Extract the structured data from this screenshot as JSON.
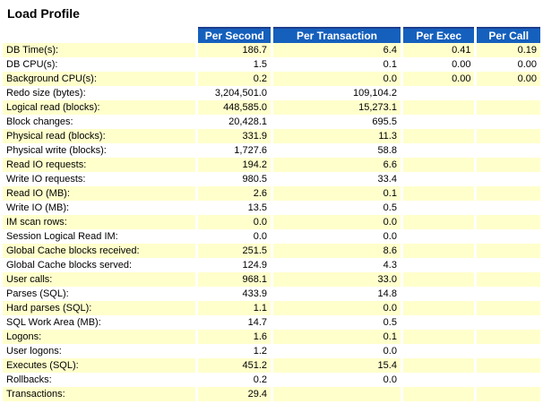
{
  "title": "Load Profile",
  "table": {
    "columns": [
      "",
      "Per Second",
      "Per Transaction",
      "Per Exec",
      "Per Call"
    ],
    "rows": [
      {
        "cells": [
          "DB Time(s):",
          "186.7",
          "6.4",
          "0.41",
          "0.19"
        ]
      },
      {
        "cells": [
          "DB CPU(s):",
          "1.5",
          "0.1",
          "0.00",
          "0.00"
        ]
      },
      {
        "cells": [
          "Background CPU(s):",
          "0.2",
          "0.0",
          "0.00",
          "0.00"
        ]
      },
      {
        "cells": [
          "Redo size (bytes):",
          "3,204,501.0",
          "109,104.2",
          "",
          ""
        ]
      },
      {
        "cells": [
          "Logical read (blocks):",
          "448,585.0",
          "15,273.1",
          "",
          ""
        ]
      },
      {
        "cells": [
          "Block changes:",
          "20,428.1",
          "695.5",
          "",
          ""
        ]
      },
      {
        "cells": [
          "Physical read (blocks):",
          "331.9",
          "11.3",
          "",
          ""
        ]
      },
      {
        "cells": [
          "Physical write (blocks):",
          "1,727.6",
          "58.8",
          "",
          ""
        ]
      },
      {
        "cells": [
          "Read IO requests:",
          "194.2",
          "6.6",
          "",
          ""
        ]
      },
      {
        "cells": [
          "Write IO requests:",
          "980.5",
          "33.4",
          "",
          ""
        ]
      },
      {
        "cells": [
          "Read IO (MB):",
          "2.6",
          "0.1",
          "",
          ""
        ]
      },
      {
        "cells": [
          "Write IO (MB):",
          "13.5",
          "0.5",
          "",
          ""
        ]
      },
      {
        "cells": [
          "IM scan rows:",
          "0.0",
          "0.0",
          "",
          ""
        ]
      },
      {
        "cells": [
          "Session Logical Read IM:",
          "0.0",
          "0.0",
          "",
          ""
        ]
      },
      {
        "cells": [
          "Global Cache blocks received:",
          "251.5",
          "8.6",
          "",
          ""
        ]
      },
      {
        "cells": [
          "Global Cache blocks served:",
          "124.9",
          "4.3",
          "",
          ""
        ]
      },
      {
        "cells": [
          "User calls:",
          "968.1",
          "33.0",
          "",
          ""
        ]
      },
      {
        "cells": [
          "Parses (SQL):",
          "433.9",
          "14.8",
          "",
          ""
        ]
      },
      {
        "cells": [
          "Hard parses (SQL):",
          "1.1",
          "0.0",
          "",
          ""
        ]
      },
      {
        "cells": [
          "SQL Work Area (MB):",
          "14.7",
          "0.5",
          "",
          ""
        ]
      },
      {
        "cells": [
          "Logons:",
          "1.6",
          "0.1",
          "",
          ""
        ]
      },
      {
        "cells": [
          "User logons:",
          "1.2",
          "0.0",
          "",
          ""
        ]
      },
      {
        "cells": [
          "Executes (SQL):",
          "451.2",
          "15.4",
          "",
          ""
        ]
      },
      {
        "cells": [
          "Rollbacks:",
          "0.2",
          "0.0",
          "",
          ""
        ]
      },
      {
        "cells": [
          "Transactions:",
          "29.4",
          "",
          "",
          ""
        ]
      }
    ]
  },
  "colors": {
    "header_bg": "#1560BD",
    "header_top": "#1E3E8C",
    "header_text": "#FFFFFF",
    "row_alt_bg": "#FFFFCC",
    "row_bg": "#FFFFFF",
    "text": "#000000"
  }
}
